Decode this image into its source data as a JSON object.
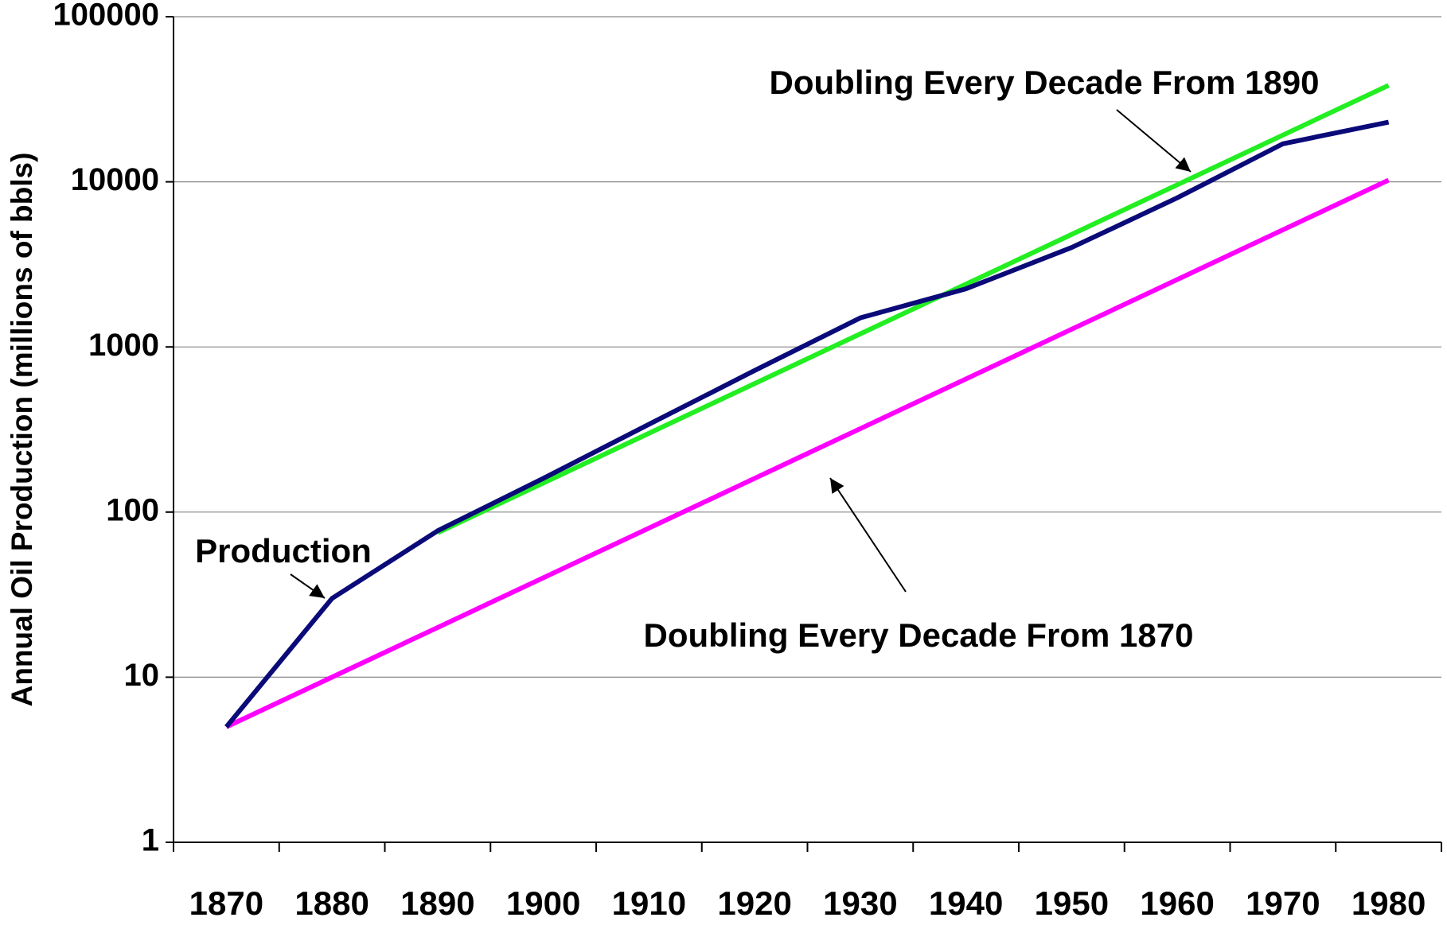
{
  "chart_data": {
    "type": "line",
    "y_label": "Annual Oil Production (millions of bbls)",
    "categories": [
      "1870",
      "1880",
      "1890",
      "1900",
      "1910",
      "1920",
      "1930",
      "1940",
      "1950",
      "1960",
      "1970",
      "1980"
    ],
    "series": [
      {
        "name": "Production",
        "color": "#0a0a78",
        "values": [
          5,
          30,
          77,
          160,
          340,
          720,
          1500,
          2250,
          4000,
          8000,
          17000,
          23000
        ]
      },
      {
        "name": "Doubling Every Decade From 1870",
        "color": "#ff00ff",
        "values": [
          5,
          10,
          20,
          40,
          80,
          160,
          320,
          640,
          1280,
          2560,
          5120,
          10240
        ]
      },
      {
        "name": "Doubling Every Decade From 1890",
        "color": "#22ee22",
        "values": [
          null,
          null,
          75,
          150,
          300,
          600,
          1200,
          2400,
          4800,
          9600,
          19200,
          38400
        ]
      }
    ],
    "ylim": [
      1,
      100000
    ],
    "yticks": [
      1,
      10,
      100,
      1000,
      10000,
      100000
    ],
    "log_y": true,
    "grid": true
  }
}
